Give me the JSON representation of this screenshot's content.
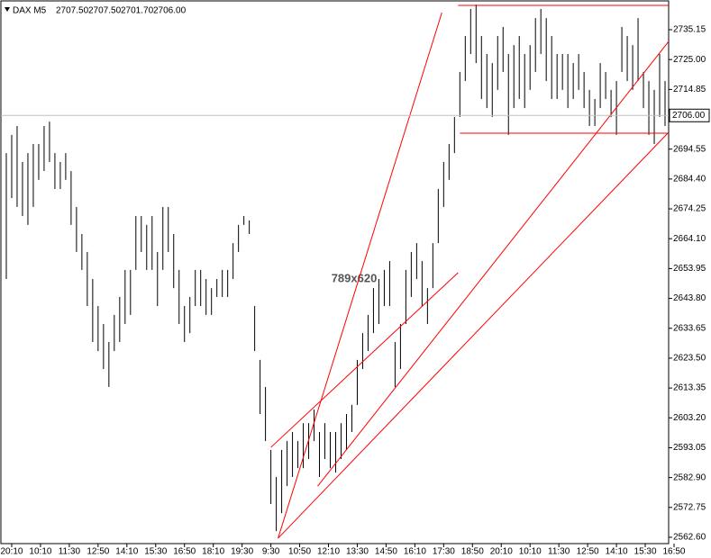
{
  "chart_data": {
    "type": "hilo",
    "symbol": "DAX M5",
    "header_values": [
      "2707.50",
      "2707.50",
      "2701.70",
      "2706.00"
    ],
    "watermark": "789x620",
    "color": "#000000",
    "line_color": "#ff0000",
    "xlim": [
      0,
      371
    ],
    "ylim": [
      2560.45,
      2745.25
    ],
    "yticks": [
      {
        "value": 2562.6,
        "label": "2562.60"
      },
      2572.75,
      {
        "value": 2582.9,
        "label": "2582.90"
      },
      2593.05,
      {
        "value": 2603.2,
        "label": "2603.20"
      },
      2613.35,
      {
        "value": 2623.5,
        "label": "2623.50"
      },
      2633.65,
      {
        "value": 2643.8,
        "label": "2643.80"
      },
      2653.95,
      {
        "value": 2664.1,
        "label": "2664.10"
      },
      2674.25,
      {
        "value": 2684.4,
        "label": "2684.40"
      },
      2694.55,
      2714.85,
      {
        "value": 2725,
        "label": "2725.00"
      },
      2735.15
    ],
    "xticks": [
      {
        "value": 6,
        "label": "20:10"
      },
      {
        "value": 22,
        "label": "10:10"
      },
      {
        "value": 38,
        "label": "11:30"
      },
      {
        "value": 54,
        "label": "12:50"
      },
      {
        "value": 70,
        "label": "14:10"
      },
      {
        "value": 86,
        "label": "15:30"
      },
      {
        "value": 102,
        "label": "16:50"
      },
      {
        "value": 118,
        "label": "18:10"
      },
      {
        "value": 134,
        "label": "19:30"
      },
      {
        "value": 150,
        "label": "9:30"
      },
      {
        "value": 166,
        "label": "10:50"
      },
      {
        "value": 182,
        "label": "12:10"
      },
      {
        "value": 198,
        "label": "13:30"
      },
      {
        "value": 214,
        "label": "14:50"
      },
      {
        "value": 230,
        "label": "16:10"
      },
      {
        "value": 246,
        "label": "17:30"
      },
      {
        "value": 262,
        "label": "18:50"
      },
      {
        "value": 278,
        "label": "20:10"
      },
      {
        "value": 294,
        "label": "10:10"
      },
      {
        "value": 310,
        "label": "11:30"
      },
      {
        "value": 326,
        "label": "12:50"
      },
      {
        "value": 342,
        "label": "14:10"
      },
      {
        "value": 358,
        "label": "15:30"
      },
      {
        "value": 374,
        "label": "16:50"
      }
    ],
    "current_price": {
      "value": 2706,
      "label": "2706.00"
    },
    "x": [
      3,
      6,
      9,
      12,
      15,
      18,
      21,
      24,
      27,
      30,
      33,
      36,
      39,
      42,
      45,
      48,
      51,
      54,
      57,
      60,
      63,
      66,
      69,
      72,
      75,
      78,
      81,
      84,
      87,
      90,
      93,
      96,
      99,
      102,
      105,
      108,
      111,
      114,
      117,
      120,
      123,
      126,
      129,
      132,
      135,
      138,
      141,
      144,
      147,
      150,
      153,
      156,
      159,
      162,
      165,
      168,
      171,
      174,
      177,
      180,
      183,
      186,
      189,
      192,
      195,
      198,
      201,
      204,
      207,
      210,
      213,
      216,
      219,
      222,
      225,
      228,
      231,
      234,
      237,
      240,
      243,
      246,
      249,
      252,
      255,
      258,
      261,
      264,
      267,
      270,
      273,
      276,
      279,
      282,
      285,
      288,
      291,
      294,
      297,
      300,
      303,
      306,
      309,
      312,
      315,
      318,
      321,
      324,
      327,
      330,
      333,
      336,
      339,
      342,
      345,
      348,
      351,
      354,
      357,
      360,
      363,
      366,
      369
    ],
    "high": [
      2693.2,
      2699.4,
      2702.4,
      2690.2,
      2693.2,
      2696.3,
      2696.3,
      2702.4,
      2703.9,
      2693.2,
      2690.2,
      2693.2,
      2687.1,
      2674.9,
      2665.7,
      2659.6,
      2650.4,
      2641.2,
      2635.1,
      2629.0,
      2638.2,
      2644.3,
      2653.5,
      2653.5,
      2671.8,
      2671.8,
      2668.8,
      2671.8,
      2659.6,
      2674.9,
      2674.9,
      2665.7,
      2653.5,
      2641.2,
      2644.3,
      2653.5,
      2653.5,
      2650.4,
      2647.3,
      2650.4,
      2653.5,
      2653.5,
      2662.6,
      2668.8,
      2671.8,
      2670.3,
      2641.2,
      2622.9,
      2613.7,
      2592.3,
      2583.1,
      2592.3,
      2595.3,
      2598.4,
      2595.3,
      2601.4,
      2601.4,
      2606.0,
      2598.4,
      2601.4,
      2598.4,
      2598.4,
      2601.4,
      2604.5,
      2607.6,
      2622.9,
      2632.0,
      2638.2,
      2647.3,
      2650.4,
      2653.5,
      2656.5,
      2629.0,
      2635.1,
      2653.5,
      2659.6,
      2662.6,
      2656.5,
      2647.3,
      2662.6,
      2681.0,
      2690.2,
      2696.3,
      2705.5,
      2720.8,
      2733.0,
      2742.2,
      2743.7,
      2733.0,
      2726.9,
      2723.8,
      2733.0,
      2736.1,
      2726.9,
      2729.9,
      2733.0,
      2726.9,
      2729.9,
      2739.1,
      2742.2,
      2739.1,
      2733.0,
      2726.9,
      2726.9,
      2726.9,
      2723.8,
      2726.9,
      2720.8,
      2714.7,
      2711.6,
      2723.8,
      2720.8,
      2714.7,
      2717.7,
      2736.1,
      2733.0,
      2729.9,
      2739.1,
      2720.8,
      2717.7,
      2714.7,
      2726.9,
      2717.7
    ],
    "low": [
      2650.4,
      2677.9,
      2674.9,
      2671.8,
      2668.8,
      2674.9,
      2684.1,
      2687.1,
      2690.2,
      2681.0,
      2681.0,
      2684.1,
      2668.8,
      2659.6,
      2653.5,
      2641.2,
      2629.0,
      2625.9,
      2619.8,
      2613.7,
      2625.9,
      2629.0,
      2635.1,
      2638.2,
      2653.5,
      2659.6,
      2653.5,
      2653.5,
      2641.2,
      2653.5,
      2659.6,
      2647.3,
      2635.1,
      2629.0,
      2632.0,
      2641.2,
      2641.2,
      2638.2,
      2638.2,
      2644.3,
      2644.3,
      2644.3,
      2650.4,
      2659.6,
      2668.8,
      2665.7,
      2625.9,
      2604.5,
      2595.3,
      2573.9,
      2564.7,
      2570.8,
      2580.0,
      2583.1,
      2586.1,
      2586.1,
      2589.2,
      2595.3,
      2583.1,
      2589.2,
      2586.1,
      2584.6,
      2589.2,
      2592.3,
      2598.4,
      2607.6,
      2619.8,
      2625.9,
      2632.0,
      2635.1,
      2641.2,
      2641.2,
      2613.7,
      2619.8,
      2635.1,
      2644.3,
      2650.4,
      2641.2,
      2635.1,
      2647.3,
      2662.6,
      2674.9,
      2684.1,
      2693.2,
      2705.5,
      2717.7,
      2726.9,
      2723.8,
      2711.6,
      2708.5,
      2705.5,
      2714.7,
      2720.8,
      2699.4,
      2708.5,
      2711.6,
      2708.5,
      2714.7,
      2720.8,
      2726.9,
      2717.7,
      2711.6,
      2711.6,
      2714.7,
      2708.5,
      2711.6,
      2714.7,
      2708.5,
      2702.4,
      2702.4,
      2708.5,
      2711.6,
      2705.5,
      2699.4,
      2720.8,
      2717.7,
      2714.7,
      2717.7,
      2708.5,
      2699.4,
      2696.3,
      2705.5,
      2702.4
    ],
    "trendlines": [
      {
        "x": [
          154,
          245
        ],
        "y": [
          2562.26,
          2740.97
        ]
      },
      {
        "x": [
          176,
          371
        ],
        "y": [
          2579.98,
          2731.17
        ]
      },
      {
        "x": [
          154,
          371
        ],
        "y": [
          2562.26,
          2700.27
        ]
      },
      {
        "x": [
          150,
          254
        ],
        "y": [
          2593.17,
          2652.53
        ]
      },
      {
        "x": [
          254,
          371
        ],
        "y": [
          2743.41,
          2743.41
        ]
      },
      {
        "x": [
          255,
          371
        ],
        "y": [
          2699.96,
          2699.96
        ]
      }
    ]
  }
}
